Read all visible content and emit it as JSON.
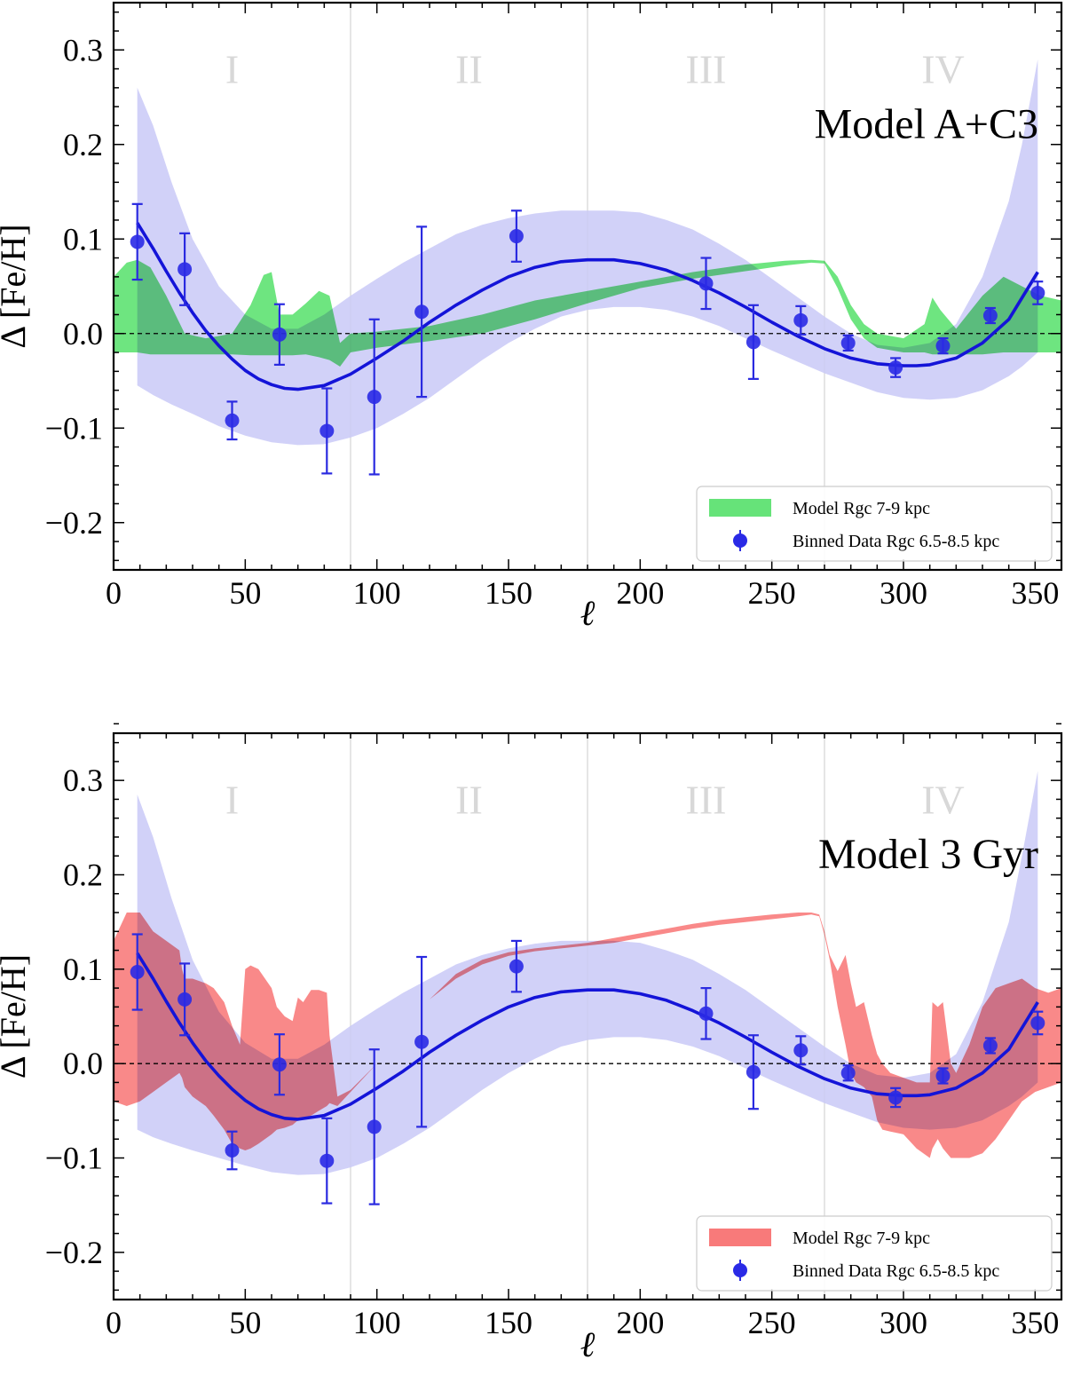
{
  "chart_data": [
    {
      "type": "scatter",
      "title": "Model A+C3",
      "xlabel": "ℓ",
      "ylabel": "Δ [Fe/H]",
      "xlim": [
        0,
        360
      ],
      "ylim": [
        -0.25,
        0.35
      ],
      "xticks": [
        0,
        50,
        100,
        150,
        200,
        250,
        300,
        350
      ],
      "yticks": [
        -0.2,
        -0.1,
        0.0,
        0.1,
        0.2,
        0.3
      ],
      "ytick_labels": [
        "−0.2",
        "−0.1",
        "0.0",
        "0.1",
        "0.2",
        "0.3"
      ],
      "quadrant_lines": [
        90,
        180,
        270
      ],
      "quadrants": [
        {
          "label": "I",
          "x": 45
        },
        {
          "label": "II",
          "x": 135
        },
        {
          "label": "III",
          "x": 225
        },
        {
          "label": "IV",
          "x": 315
        }
      ],
      "quadrant_label_y": 0.265,
      "model_color": "#55e06a",
      "model_band": {
        "name": "Model Rgc 7-9 kpc",
        "x": [
          0,
          5,
          9,
          14,
          20,
          27,
          35,
          45,
          52,
          57,
          60,
          63,
          68,
          73,
          78,
          82,
          86,
          90,
          100,
          120,
          140,
          160,
          180,
          200,
          220,
          240,
          255,
          265,
          270,
          275,
          280,
          285,
          290,
          300,
          308,
          311,
          314,
          320,
          330,
          338,
          345,
          352,
          360
        ],
        "upper": [
          0.06,
          0.075,
          0.078,
          0.07,
          0.04,
          0.0,
          -0.005,
          0.0,
          0.03,
          0.062,
          0.065,
          0.02,
          0.02,
          0.032,
          0.045,
          0.04,
          -0.01,
          0.0,
          0.002,
          0.008,
          0.02,
          0.035,
          0.045,
          0.055,
          0.065,
          0.073,
          0.077,
          0.078,
          0.077,
          0.06,
          0.03,
          0.01,
          0.0,
          -0.005,
          0.01,
          0.038,
          0.025,
          0.005,
          0.04,
          0.06,
          0.05,
          0.04,
          0.035
        ],
        "lower": [
          -0.02,
          -0.02,
          -0.02,
          -0.022,
          -0.022,
          -0.022,
          -0.022,
          -0.022,
          -0.023,
          -0.023,
          -0.023,
          -0.023,
          -0.023,
          -0.022,
          -0.025,
          -0.028,
          -0.035,
          -0.02,
          -0.015,
          -0.008,
          0.0,
          0.015,
          0.032,
          0.048,
          0.058,
          0.066,
          0.072,
          0.075,
          0.074,
          0.048,
          0.015,
          -0.005,
          -0.015,
          -0.02,
          -0.02,
          -0.022,
          -0.022,
          -0.022,
          -0.022,
          -0.02,
          -0.02,
          -0.02,
          -0.02
        ]
      },
      "fit_band": {
        "x": [
          9,
          15,
          22,
          30,
          40,
          50,
          60,
          70,
          80,
          90,
          100,
          110,
          120,
          130,
          140,
          150,
          160,
          170,
          180,
          190,
          200,
          210,
          220,
          230,
          240,
          250,
          260,
          270,
          280,
          290,
          300,
          310,
          320,
          330,
          340,
          345,
          351
        ],
        "upper": [
          0.26,
          0.22,
          0.16,
          0.1,
          0.05,
          0.02,
          0.005,
          0.005,
          0.02,
          0.04,
          0.058,
          0.075,
          0.09,
          0.105,
          0.115,
          0.122,
          0.127,
          0.13,
          0.13,
          0.13,
          0.128,
          0.12,
          0.11,
          0.095,
          0.078,
          0.058,
          0.038,
          0.018,
          0.0,
          -0.012,
          -0.015,
          -0.01,
          0.01,
          0.06,
          0.14,
          0.2,
          0.29
        ],
        "lower": [
          -0.055,
          -0.065,
          -0.075,
          -0.085,
          -0.098,
          -0.108,
          -0.115,
          -0.118,
          -0.117,
          -0.11,
          -0.1,
          -0.085,
          -0.068,
          -0.048,
          -0.028,
          -0.01,
          0.005,
          0.018,
          0.025,
          0.028,
          0.028,
          0.025,
          0.018,
          0.008,
          -0.005,
          -0.018,
          -0.03,
          -0.042,
          -0.052,
          -0.062,
          -0.068,
          -0.07,
          -0.068,
          -0.06,
          -0.045,
          -0.035,
          -0.02
        ]
      },
      "fit_curve": {
        "x": [
          9,
          15,
          20,
          25,
          30,
          35,
          40,
          45,
          50,
          55,
          60,
          65,
          70,
          80,
          90,
          100,
          110,
          120,
          130,
          140,
          150,
          160,
          170,
          180,
          190,
          200,
          210,
          220,
          230,
          240,
          250,
          260,
          270,
          280,
          290,
          300,
          305,
          310,
          320,
          330,
          340,
          351
        ],
        "y": [
          0.117,
          0.09,
          0.066,
          0.043,
          0.022,
          0.003,
          -0.013,
          -0.027,
          -0.039,
          -0.048,
          -0.054,
          -0.058,
          -0.059,
          -0.055,
          -0.043,
          -0.026,
          -0.008,
          0.012,
          0.03,
          0.046,
          0.06,
          0.07,
          0.076,
          0.078,
          0.078,
          0.074,
          0.067,
          0.056,
          0.043,
          0.028,
          0.012,
          -0.003,
          -0.016,
          -0.026,
          -0.032,
          -0.034,
          -0.034,
          -0.033,
          -0.026,
          -0.01,
          0.015,
          0.065
        ]
      },
      "binned_data": {
        "name": "Binned Data Rgc 6.5-8.5 kpc",
        "x": [
          9,
          27,
          45,
          63,
          81,
          99,
          117,
          153,
          225,
          243,
          261,
          279,
          297,
          315,
          333,
          351
        ],
        "y": [
          0.097,
          0.068,
          -0.092,
          -0.001,
          -0.103,
          -0.067,
          0.023,
          0.103,
          0.053,
          -0.009,
          0.014,
          -0.01,
          -0.036,
          -0.013,
          0.019,
          0.043
        ],
        "err": [
          0.04,
          0.038,
          0.02,
          0.032,
          0.045,
          0.082,
          0.09,
          0.027,
          0.027,
          0.039,
          0.015,
          0.008,
          0.01,
          0.008,
          0.008,
          0.012
        ]
      },
      "legend": {
        "position": "lower right",
        "entries": [
          "Model Rgc 7-9 kpc",
          "Binned Data Rgc 6.5-8.5 kpc"
        ]
      }
    },
    {
      "type": "scatter",
      "title": "Model 3 Gyr",
      "xlabel": "ℓ",
      "ylabel": "Δ [Fe/H]",
      "xlim": [
        0,
        360
      ],
      "ylim": [
        -0.25,
        0.35
      ],
      "xticks": [
        0,
        50,
        100,
        150,
        200,
        250,
        300,
        350
      ],
      "yticks": [
        -0.2,
        -0.1,
        0.0,
        0.1,
        0.2,
        0.3
      ],
      "ytick_labels": [
        "−0.2",
        "−0.1",
        "0.0",
        "0.1",
        "0.2",
        "0.3"
      ],
      "quadrant_lines": [
        90,
        180,
        270
      ],
      "quadrants": [
        {
          "label": "I",
          "x": 45
        },
        {
          "label": "II",
          "x": 135
        },
        {
          "label": "III",
          "x": 225
        },
        {
          "label": "IV",
          "x": 315
        }
      ],
      "quadrant_label_y": 0.265,
      "model_color": "#f76b6b",
      "model_band": {
        "name": "Model Rgc 7-9 kpc",
        "x": [
          0,
          5,
          10,
          15,
          20,
          25,
          26,
          27,
          30,
          35,
          38,
          42,
          45,
          48,
          50,
          52,
          55,
          60,
          62,
          65,
          68,
          70,
          72,
          75,
          78,
          81,
          82,
          85,
          90,
          100,
          110,
          120,
          130,
          140,
          150,
          160,
          170,
          180,
          190,
          200,
          210,
          220,
          230,
          240,
          250,
          260,
          265,
          268,
          270,
          272,
          275,
          278,
          280,
          282,
          285,
          288,
          290,
          292,
          295,
          300,
          305,
          310,
          311,
          313,
          315,
          318,
          320,
          325,
          330,
          335,
          340,
          345,
          350,
          355,
          360
        ],
        "upper": [
          0.13,
          0.16,
          0.16,
          0.14,
          0.13,
          0.12,
          0.1,
          0.09,
          0.09,
          0.085,
          0.08,
          0.065,
          0.04,
          0.02,
          0.1,
          0.104,
          0.1,
          0.08,
          0.06,
          0.05,
          0.045,
          0.07,
          0.065,
          0.078,
          0.078,
          0.075,
          0.03,
          -0.035,
          -0.028,
          0.0,
          0.035,
          0.068,
          0.095,
          0.11,
          0.118,
          0.122,
          0.125,
          0.128,
          0.133,
          0.138,
          0.143,
          0.148,
          0.152,
          0.155,
          0.158,
          0.16,
          0.16,
          0.158,
          0.14,
          0.115,
          0.098,
          0.115,
          0.085,
          0.06,
          0.065,
          0.03,
          0.01,
          0.0,
          -0.01,
          -0.015,
          -0.02,
          -0.02,
          0.065,
          0.06,
          0.065,
          0.0,
          -0.01,
          0.02,
          0.06,
          0.08,
          0.085,
          0.09,
          0.08,
          0.075,
          0.08
        ],
        "lower": [
          -0.04,
          -0.045,
          -0.04,
          -0.03,
          -0.02,
          -0.01,
          -0.015,
          -0.025,
          -0.035,
          -0.045,
          -0.055,
          -0.07,
          -0.085,
          -0.09,
          -0.092,
          -0.09,
          -0.085,
          -0.075,
          -0.07,
          -0.068,
          -0.065,
          -0.06,
          -0.058,
          -0.055,
          -0.05,
          -0.045,
          -0.042,
          -0.045,
          -0.03,
          0.0,
          0.035,
          0.068,
          0.09,
          0.105,
          0.114,
          0.119,
          0.122,
          0.125,
          0.128,
          0.133,
          0.138,
          0.143,
          0.147,
          0.15,
          0.153,
          0.156,
          0.158,
          0.156,
          0.136,
          0.11,
          0.06,
          0.02,
          -0.01,
          -0.02,
          -0.025,
          -0.035,
          -0.06,
          -0.07,
          -0.072,
          -0.075,
          -0.09,
          -0.1,
          -0.09,
          -0.08,
          -0.09,
          -0.1,
          -0.1,
          -0.1,
          -0.095,
          -0.08,
          -0.06,
          -0.04,
          -0.03,
          -0.025,
          -0.02
        ]
      },
      "fit_band": {
        "x": [
          9,
          15,
          22,
          30,
          40,
          50,
          60,
          70,
          80,
          90,
          100,
          110,
          120,
          130,
          140,
          150,
          160,
          170,
          180,
          190,
          200,
          210,
          220,
          230,
          240,
          250,
          260,
          270,
          280,
          290,
          300,
          310,
          320,
          330,
          340,
          345,
          351
        ],
        "upper": [
          0.285,
          0.24,
          0.175,
          0.11,
          0.055,
          0.022,
          0.005,
          0.005,
          0.02,
          0.04,
          0.058,
          0.075,
          0.09,
          0.105,
          0.115,
          0.122,
          0.127,
          0.13,
          0.13,
          0.13,
          0.128,
          0.12,
          0.11,
          0.095,
          0.078,
          0.058,
          0.038,
          0.018,
          0.0,
          -0.012,
          -0.015,
          -0.01,
          0.01,
          0.065,
          0.15,
          0.22,
          0.31
        ],
        "lower": [
          -0.07,
          -0.078,
          -0.085,
          -0.092,
          -0.1,
          -0.108,
          -0.115,
          -0.118,
          -0.117,
          -0.11,
          -0.1,
          -0.085,
          -0.068,
          -0.048,
          -0.028,
          -0.01,
          0.005,
          0.018,
          0.025,
          0.028,
          0.028,
          0.025,
          0.018,
          0.008,
          -0.005,
          -0.018,
          -0.03,
          -0.042,
          -0.052,
          -0.062,
          -0.068,
          -0.07,
          -0.068,
          -0.06,
          -0.045,
          -0.035,
          -0.02
        ]
      },
      "fit_curve": {
        "x": [
          9,
          15,
          20,
          25,
          30,
          35,
          40,
          45,
          50,
          55,
          60,
          65,
          70,
          80,
          90,
          100,
          110,
          120,
          130,
          140,
          150,
          160,
          170,
          180,
          190,
          200,
          210,
          220,
          230,
          240,
          250,
          260,
          270,
          280,
          290,
          300,
          305,
          310,
          320,
          330,
          340,
          351
        ],
        "y": [
          0.117,
          0.09,
          0.066,
          0.043,
          0.022,
          0.003,
          -0.013,
          -0.027,
          -0.039,
          -0.048,
          -0.054,
          -0.058,
          -0.059,
          -0.055,
          -0.043,
          -0.026,
          -0.008,
          0.012,
          0.03,
          0.046,
          0.06,
          0.07,
          0.076,
          0.078,
          0.078,
          0.074,
          0.067,
          0.056,
          0.043,
          0.028,
          0.012,
          -0.003,
          -0.016,
          -0.026,
          -0.032,
          -0.034,
          -0.034,
          -0.033,
          -0.026,
          -0.01,
          0.015,
          0.065
        ]
      },
      "binned_data": {
        "name": "Binned Data Rgc 6.5-8.5 kpc",
        "x": [
          9,
          27,
          45,
          63,
          81,
          99,
          117,
          153,
          225,
          243,
          261,
          279,
          297,
          315,
          333,
          351
        ],
        "y": [
          0.097,
          0.068,
          -0.092,
          -0.001,
          -0.103,
          -0.067,
          0.023,
          0.103,
          0.053,
          -0.009,
          0.014,
          -0.01,
          -0.036,
          -0.013,
          0.019,
          0.043
        ],
        "err": [
          0.04,
          0.038,
          0.02,
          0.032,
          0.045,
          0.082,
          0.09,
          0.027,
          0.027,
          0.039,
          0.015,
          0.008,
          0.01,
          0.008,
          0.008,
          0.012
        ]
      },
      "legend": {
        "position": "lower right",
        "entries": [
          "Model Rgc 7-9 kpc",
          "Binned Data Rgc 6.5-8.5 kpc"
        ]
      }
    }
  ]
}
